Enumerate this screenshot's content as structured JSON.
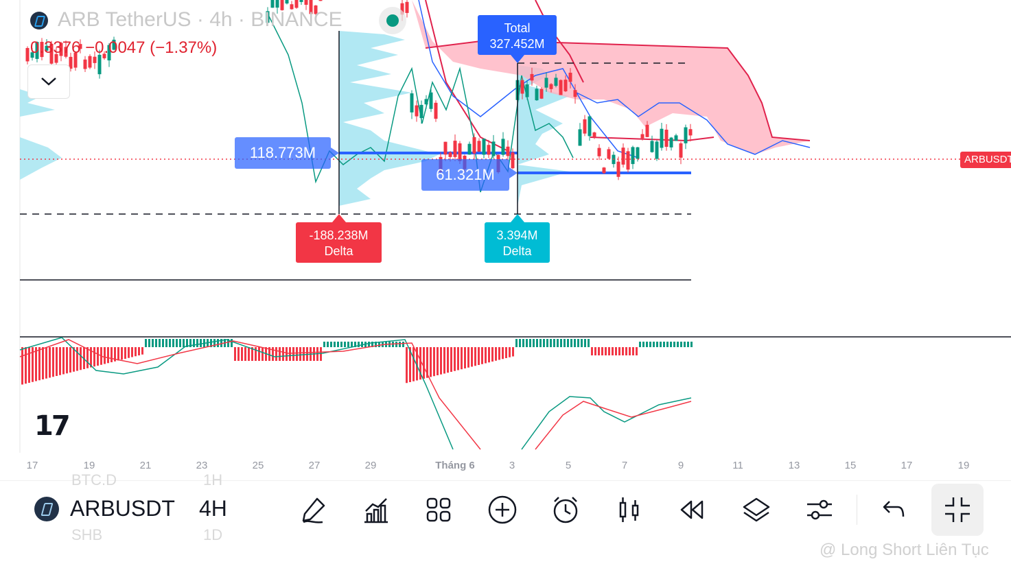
{
  "header": {
    "title": "ARB TetherUS · 4h · BINANCE",
    "price_line": "0.3376 −0.0047 (−1.37%)"
  },
  "chart": {
    "total_label": [
      "Total",
      "327.452M"
    ],
    "volume_labels": [
      "118.773M",
      "61.321M"
    ],
    "delta_labels": [
      {
        "value": "-188.238M",
        "caption": "Delta",
        "color": "#f23645"
      },
      {
        "value": "3.394M",
        "caption": "Delta",
        "color": "#00bcd4"
      }
    ],
    "ticker_label": "ARBUSDT",
    "colors": {
      "up": "#089981",
      "down": "#f23645",
      "profile": "#9de3f0",
      "cloud_bear": "#ffb3c1",
      "poc": "#2962ff"
    }
  },
  "time_axis": [
    "17",
    "19",
    "21",
    "23",
    "25",
    "27",
    "29",
    "Tháng 6",
    "3",
    "5",
    "7",
    "9",
    "11",
    "13",
    "15",
    "17",
    "19"
  ],
  "toolbar": {
    "ghost_items": [
      "BTC.D",
      "1H",
      "SHB",
      "1D"
    ],
    "symbol": "ARBUSDT",
    "interval": "4H",
    "tools": [
      {
        "name": "draw-tool",
        "icon": "pen-icon"
      },
      {
        "name": "indicators-tool",
        "icon": "chart-bars-icon"
      },
      {
        "name": "templates-tool",
        "icon": "grid-icon"
      },
      {
        "name": "add-tool",
        "icon": "plus-circle-icon"
      },
      {
        "name": "alert-tool",
        "icon": "alarm-icon"
      },
      {
        "name": "chart-type-tool",
        "icon": "candles-icon"
      },
      {
        "name": "replay-tool",
        "icon": "rewind-icon"
      },
      {
        "name": "layers-tool",
        "icon": "layers-icon"
      },
      {
        "name": "settings-tool",
        "icon": "sliders-icon"
      },
      {
        "name": "undo-tool",
        "icon": "undo-icon"
      },
      {
        "name": "exit-fullscreen-tool",
        "icon": "collapse-icon"
      }
    ]
  },
  "watermark": "@ Long Short Liên Tục"
}
